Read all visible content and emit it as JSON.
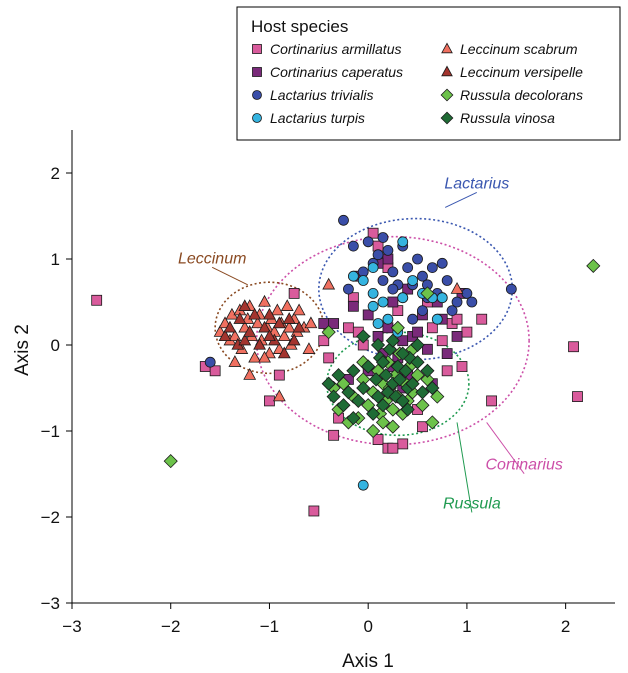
{
  "chart_data": {
    "type": "scatter",
    "title": "",
    "xlabel": "Axis 1",
    "ylabel": "Axis 2",
    "xlim": [
      -3,
      2.5
    ],
    "ylim": [
      -3,
      2.5
    ],
    "xticks": [
      -3,
      -2,
      -1,
      0,
      1,
      2
    ],
    "yticks": [
      -3,
      -2,
      -1,
      0,
      1,
      2
    ],
    "grid": false,
    "legend": {
      "title": "Host species",
      "placement": "top-right"
    },
    "series": [
      {
        "name": "Cortinarius armillatus",
        "marker": "square",
        "color": "#d95b9c",
        "points": [
          [
            -2.75,
            0.52
          ],
          [
            -1.65,
            -0.25
          ],
          [
            -1.55,
            -0.3
          ],
          [
            -1.0,
            -0.65
          ],
          [
            -0.9,
            -0.35
          ],
          [
            -0.75,
            0.6
          ],
          [
            -0.55,
            -1.93
          ],
          [
            -0.45,
            0.05
          ],
          [
            -0.4,
            -0.15
          ],
          [
            -0.35,
            -1.05
          ],
          [
            -0.3,
            -0.85
          ],
          [
            -0.2,
            0.2
          ],
          [
            -0.15,
            0.55
          ],
          [
            -0.1,
            0.15
          ],
          [
            0.05,
            1.3
          ],
          [
            0.1,
            1.15
          ],
          [
            0.2,
            0.9
          ],
          [
            0.3,
            0.4
          ],
          [
            0.1,
            -1.1
          ],
          [
            0.2,
            -1.2
          ],
          [
            0.35,
            -1.15
          ],
          [
            0.5,
            -0.75
          ],
          [
            0.55,
            -0.95
          ],
          [
            0.6,
            0.5
          ],
          [
            0.65,
            0.2
          ],
          [
            0.75,
            0.05
          ],
          [
            0.8,
            -0.3
          ],
          [
            0.85,
            0.25
          ],
          [
            0.9,
            0.3
          ],
          [
            0.95,
            -0.25
          ],
          [
            1.0,
            0.15
          ],
          [
            1.15,
            0.3
          ],
          [
            1.25,
            -0.65
          ],
          [
            2.08,
            -0.02
          ],
          [
            2.12,
            -0.6
          ],
          [
            0.3,
            -0.35
          ],
          [
            0.45,
            -0.2
          ],
          [
            -0.05,
            0.0
          ],
          [
            0.25,
            -1.2
          ]
        ]
      },
      {
        "name": "Cortinarius caperatus",
        "marker": "square",
        "color": "#7a2a7a",
        "points": [
          [
            -0.45,
            0.25
          ],
          [
            -0.35,
            0.25
          ],
          [
            -0.2,
            -0.4
          ],
          [
            -0.1,
            0.8
          ],
          [
            0.0,
            -0.3
          ],
          [
            0.1,
            0.1
          ],
          [
            0.15,
            -0.1
          ],
          [
            0.2,
            0.2
          ],
          [
            0.25,
            0.5
          ],
          [
            0.3,
            -0.15
          ],
          [
            0.35,
            0.05
          ],
          [
            0.35,
            -0.5
          ],
          [
            0.4,
            -0.35
          ],
          [
            0.45,
            0.1
          ],
          [
            0.5,
            0.15
          ],
          [
            0.55,
            0.35
          ],
          [
            0.6,
            -0.05
          ],
          [
            0.65,
            -0.45
          ],
          [
            0.7,
            0.5
          ],
          [
            0.75,
            0.3
          ],
          [
            0.8,
            -0.1
          ],
          [
            0.9,
            0.1
          ],
          [
            0.95,
            0.6
          ],
          [
            0.2,
            1.0
          ],
          [
            0.1,
            0.95
          ],
          [
            -0.15,
            0.45
          ],
          [
            0.0,
            0.35
          ],
          [
            0.25,
            -0.25
          ],
          [
            0.4,
            0.65
          ]
        ]
      },
      {
        "name": "Lactarius trivialis",
        "marker": "circle",
        "color": "#3a4ea8",
        "points": [
          [
            -0.25,
            1.45
          ],
          [
            -0.2,
            0.65
          ],
          [
            -0.05,
            0.85
          ],
          [
            0.0,
            1.2
          ],
          [
            0.05,
            0.95
          ],
          [
            0.1,
            1.05
          ],
          [
            0.15,
            0.75
          ],
          [
            0.2,
            1.1
          ],
          [
            0.25,
            0.85
          ],
          [
            0.3,
            0.7
          ],
          [
            0.35,
            0.55
          ],
          [
            0.4,
            0.9
          ],
          [
            0.45,
            0.7
          ],
          [
            0.5,
            1.0
          ],
          [
            0.55,
            0.8
          ],
          [
            0.6,
            0.55
          ],
          [
            0.65,
            0.9
          ],
          [
            0.7,
            0.6
          ],
          [
            0.75,
            0.55
          ],
          [
            0.8,
            0.75
          ],
          [
            0.85,
            0.4
          ],
          [
            0.9,
            0.5
          ],
          [
            1.0,
            0.6
          ],
          [
            1.05,
            0.5
          ],
          [
            1.45,
            0.65
          ],
          [
            0.35,
            1.15
          ],
          [
            0.55,
            0.4
          ],
          [
            0.45,
            0.3
          ],
          [
            0.25,
            0.65
          ],
          [
            0.15,
            1.25
          ],
          [
            -0.15,
            1.15
          ],
          [
            0.6,
            0.7
          ],
          [
            0.75,
            0.95
          ],
          [
            -1.6,
            -0.2
          ]
        ]
      },
      {
        "name": "Lactarius turpis",
        "marker": "circle",
        "color": "#35b4e0",
        "points": [
          [
            -0.15,
            0.8
          ],
          [
            -0.05,
            0.75
          ],
          [
            0.05,
            0.6
          ],
          [
            0.1,
            0.25
          ],
          [
            0.2,
            0.3
          ],
          [
            0.3,
            0.15
          ],
          [
            0.35,
            0.55
          ],
          [
            0.45,
            0.75
          ],
          [
            0.55,
            0.6
          ],
          [
            0.65,
            0.55
          ],
          [
            0.7,
            0.3
          ],
          [
            0.75,
            0.55
          ],
          [
            0.15,
            0.5
          ],
          [
            -0.05,
            -1.63
          ],
          [
            0.05,
            0.45
          ],
          [
            0.35,
            1.2
          ],
          [
            0.05,
            0.9
          ]
        ]
      },
      {
        "name": "Leccinum scabrum",
        "marker": "triangle",
        "color": "#f07060",
        "points": [
          [
            -1.5,
            0.15
          ],
          [
            -1.45,
            0.25
          ],
          [
            -1.4,
            0.05
          ],
          [
            -1.38,
            0.35
          ],
          [
            -1.35,
            0.1
          ],
          [
            -1.3,
            0.4
          ],
          [
            -1.28,
            -0.05
          ],
          [
            -1.25,
            0.2
          ],
          [
            -1.22,
            0.3
          ],
          [
            -1.2,
            0.45
          ],
          [
            -1.18,
            0.1
          ],
          [
            -1.15,
            -0.15
          ],
          [
            -1.12,
            0.25
          ],
          [
            -1.1,
            0.35
          ],
          [
            -1.08,
            0.05
          ],
          [
            -1.05,
            0.5
          ],
          [
            -1.02,
            0.2
          ],
          [
            -1.0,
            -0.1
          ],
          [
            -0.98,
            0.3
          ],
          [
            -0.95,
            0.15
          ],
          [
            -0.92,
            0.4
          ],
          [
            -0.9,
            -0.05
          ],
          [
            -0.88,
            0.25
          ],
          [
            -0.85,
            0.1
          ],
          [
            -0.82,
            0.45
          ],
          [
            -0.8,
            0.2
          ],
          [
            -0.78,
            0.0
          ],
          [
            -0.75,
            0.3
          ],
          [
            -0.72,
            0.15
          ],
          [
            -0.7,
            0.4
          ],
          [
            -0.65,
            0.2
          ],
          [
            -0.6,
            -0.05
          ],
          [
            -0.58,
            0.25
          ],
          [
            -1.2,
            -0.35
          ],
          [
            -0.9,
            -0.6
          ],
          [
            -1.35,
            -0.2
          ],
          [
            -1.05,
            -0.15
          ],
          [
            -0.4,
            0.7
          ],
          [
            0.9,
            0.65
          ]
        ]
      },
      {
        "name": "Leccinum versipelle",
        "marker": "triangle",
        "color": "#a3342e",
        "points": [
          [
            -1.45,
            0.1
          ],
          [
            -1.4,
            0.2
          ],
          [
            -1.32,
            0.0
          ],
          [
            -1.3,
            0.3
          ],
          [
            -1.25,
            0.05
          ],
          [
            -1.2,
            0.15
          ],
          [
            -1.15,
            0.35
          ],
          [
            -1.1,
            0.0
          ],
          [
            -1.05,
            0.2
          ],
          [
            -1.0,
            0.35
          ],
          [
            -0.95,
            0.05
          ],
          [
            -0.9,
            0.25
          ],
          [
            -0.85,
            -0.1
          ],
          [
            -0.8,
            0.3
          ],
          [
            -0.75,
            0.05
          ],
          [
            -0.7,
            0.2
          ],
          [
            -1.25,
            0.45
          ],
          [
            -1.0,
            0.1
          ]
        ]
      },
      {
        "name": "Russula decolorans",
        "marker": "diamond",
        "color": "#6cc24a",
        "points": [
          [
            -2.0,
            -1.35
          ],
          [
            -0.4,
            0.15
          ],
          [
            -0.35,
            -0.5
          ],
          [
            -0.3,
            -0.75
          ],
          [
            -0.25,
            -0.45
          ],
          [
            -0.2,
            -0.9
          ],
          [
            -0.15,
            -0.6
          ],
          [
            -0.1,
            -0.85
          ],
          [
            -0.05,
            -0.4
          ],
          [
            0.0,
            -0.7
          ],
          [
            0.05,
            -0.55
          ],
          [
            0.1,
            -0.3
          ],
          [
            0.12,
            -0.8
          ],
          [
            0.15,
            -0.45
          ],
          [
            0.18,
            -0.65
          ],
          [
            0.2,
            -0.2
          ],
          [
            0.22,
            -0.5
          ],
          [
            0.25,
            -0.75
          ],
          [
            0.28,
            -0.35
          ],
          [
            0.3,
            -0.6
          ],
          [
            0.32,
            -0.1
          ],
          [
            0.35,
            -0.8
          ],
          [
            0.38,
            -0.45
          ],
          [
            0.4,
            -0.65
          ],
          [
            0.42,
            -0.25
          ],
          [
            0.45,
            -0.55
          ],
          [
            0.5,
            -0.35
          ],
          [
            0.55,
            -0.7
          ],
          [
            0.6,
            -0.4
          ],
          [
            0.65,
            -0.9
          ],
          [
            0.7,
            -0.6
          ],
          [
            0.3,
            0.2
          ],
          [
            0.15,
            -0.9
          ],
          [
            -0.05,
            -0.2
          ],
          [
            0.05,
            -1.0
          ],
          [
            0.6,
            0.6
          ],
          [
            2.28,
            0.92
          ],
          [
            0.25,
            -0.95
          ],
          [
            0.45,
            -0.05
          ]
        ]
      },
      {
        "name": "Russula vinosa",
        "marker": "diamond",
        "color": "#1f6b35",
        "points": [
          [
            -0.4,
            -0.45
          ],
          [
            -0.35,
            -0.6
          ],
          [
            -0.3,
            -0.35
          ],
          [
            -0.25,
            -0.7
          ],
          [
            -0.2,
            -0.55
          ],
          [
            -0.15,
            -0.3
          ],
          [
            -0.1,
            -0.65
          ],
          [
            -0.05,
            -0.5
          ],
          [
            0.0,
            -0.25
          ],
          [
            0.05,
            -0.8
          ],
          [
            0.08,
            -0.4
          ],
          [
            0.1,
            -0.6
          ],
          [
            0.12,
            -0.15
          ],
          [
            0.15,
            -0.7
          ],
          [
            0.18,
            -0.35
          ],
          [
            0.2,
            -0.55
          ],
          [
            0.22,
            -0.05
          ],
          [
            0.25,
            -0.45
          ],
          [
            0.28,
            -0.6
          ],
          [
            0.3,
            -0.25
          ],
          [
            0.32,
            -0.4
          ],
          [
            0.35,
            -0.65
          ],
          [
            0.38,
            -0.3
          ],
          [
            0.4,
            -0.5
          ],
          [
            0.42,
            -0.15
          ],
          [
            0.45,
            -0.45
          ],
          [
            0.5,
            -0.2
          ],
          [
            0.55,
            -0.55
          ],
          [
            0.6,
            -0.3
          ],
          [
            0.65,
            -0.5
          ],
          [
            -0.05,
            0.1
          ],
          [
            0.1,
            0.0
          ],
          [
            0.25,
            0.05
          ],
          [
            0.4,
            -0.75
          ],
          [
            0.5,
            0.0
          ],
          [
            -0.15,
            -0.85
          ],
          [
            0.35,
            -0.1
          ],
          [
            0.15,
            -0.2
          ]
        ]
      }
    ],
    "ellipses": [
      {
        "label": "Lactarius",
        "color": "#3a57b0",
        "cx": 0.48,
        "cy": 0.65,
        "rx": 0.98,
        "ry": 0.82,
        "label_x": 1.1,
        "label_y": 1.82,
        "leader_to": [
          0.78,
          1.6
        ]
      },
      {
        "label": "Cortinarius",
        "color": "#cc4fa8",
        "cx": 0.25,
        "cy": 0.05,
        "rx": 1.38,
        "ry": 1.21,
        "label_x": 1.58,
        "label_y": -1.45,
        "leader_to": [
          1.2,
          -0.9
        ]
      },
      {
        "label": "Leccinum",
        "color": "#8a4a22",
        "cx": -1.0,
        "cy": 0.2,
        "rx": 0.55,
        "ry": 0.53,
        "label_x": -1.58,
        "label_y": 0.95,
        "leader_to": [
          -1.22,
          0.7
        ]
      },
      {
        "label": "Russula",
        "color": "#1f9a50",
        "cx": 0.3,
        "cy": -0.45,
        "rx": 0.72,
        "ry": 0.6,
        "label_x": 1.05,
        "label_y": -1.9,
        "leader_to": [
          0.9,
          -0.9
        ]
      }
    ]
  }
}
